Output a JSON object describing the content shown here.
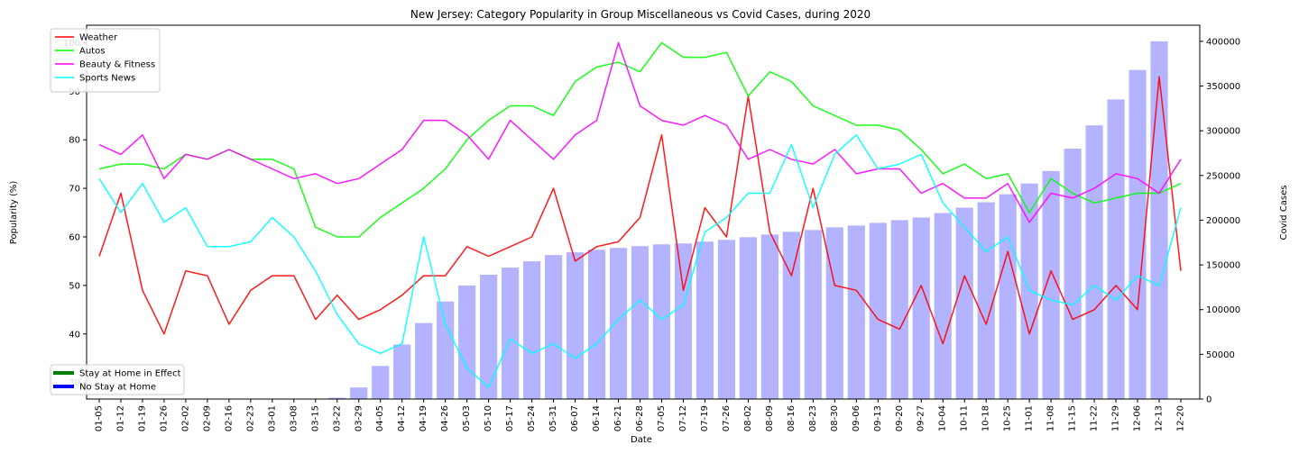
{
  "chart_data": {
    "type": "bar+line",
    "title": "New Jersey: Category Popularity in Group Miscellaneous vs Covid Cases, during 2020",
    "xlabel": "Date",
    "ylabel": "Popularity (%)",
    "y2label": "Covid Cases",
    "ylim": [
      26.6,
      103.6
    ],
    "y2lim": [
      0,
      418000
    ],
    "yticks": [
      30,
      40,
      50,
      60,
      70,
      80,
      90,
      100
    ],
    "y2ticks": [
      0,
      50000,
      100000,
      150000,
      200000,
      250000,
      300000,
      350000,
      400000
    ],
    "categories": [
      "01-05",
      "01-12",
      "01-19",
      "01-26",
      "02-02",
      "02-09",
      "02-16",
      "02-23",
      "03-01",
      "03-08",
      "03-15",
      "03-22",
      "03-29",
      "04-05",
      "04-12",
      "04-19",
      "04-26",
      "05-03",
      "05-10",
      "05-17",
      "05-24",
      "05-31",
      "06-07",
      "06-14",
      "06-21",
      "06-28",
      "07-05",
      "07-12",
      "07-19",
      "07-26",
      "08-02",
      "08-09",
      "08-16",
      "08-23",
      "08-30",
      "09-06",
      "09-13",
      "09-20",
      "09-27",
      "10-04",
      "10-11",
      "10-18",
      "10-25",
      "11-01",
      "11-08",
      "11-15",
      "11-22",
      "11-29",
      "12-06",
      "12-13",
      "12-20"
    ],
    "bars": {
      "name": "Covid Cases",
      "color": "#b3b3ff",
      "values": [
        0,
        0,
        0,
        0,
        0,
        0,
        0,
        0,
        0,
        0,
        0,
        1500,
        13000,
        37000,
        61000,
        85000,
        109000,
        127000,
        139000,
        147000,
        154000,
        161000,
        164000,
        167000,
        169000,
        171000,
        173000,
        174000,
        176000,
        178000,
        181000,
        184000,
        187000,
        189000,
        192000,
        194000,
        197000,
        200000,
        203000,
        208000,
        214000,
        220000,
        229000,
        241000,
        255000,
        280000,
        306000,
        335000,
        368000,
        400000,
        null
      ]
    },
    "series": [
      {
        "name": "Weather",
        "color": "#ff0000",
        "values": [
          56,
          69,
          49,
          40,
          53,
          52,
          42,
          49,
          52,
          52,
          43,
          48,
          43,
          45,
          48,
          52,
          52,
          58,
          56,
          58,
          60,
          70,
          55,
          58,
          59,
          64,
          81,
          49,
          66,
          60,
          89,
          61,
          52,
          70,
          50,
          49,
          43,
          41,
          50,
          38,
          52,
          42,
          57,
          40,
          53,
          43,
          45,
          50,
          45,
          93,
          53
        ]
      },
      {
        "name": "Autos",
        "color": "#00ff00",
        "values": [
          74,
          75,
          75,
          74,
          77,
          76,
          78,
          76,
          76,
          74,
          62,
          60,
          60,
          64,
          67,
          70,
          74,
          80,
          84,
          87,
          87,
          85,
          92,
          95,
          96,
          94,
          100,
          97,
          97,
          98,
          89,
          94,
          92,
          87,
          85,
          83,
          83,
          82,
          78,
          73,
          75,
          72,
          73,
          65,
          72,
          69,
          67,
          68,
          69,
          69,
          71
        ]
      },
      {
        "name": "Beauty & Fitness",
        "color": "#ff00ff",
        "values": [
          79,
          77,
          81,
          72,
          77,
          76,
          78,
          76,
          74,
          72,
          73,
          71,
          72,
          75,
          78,
          84,
          84,
          81,
          76,
          84,
          80,
          76,
          81,
          84,
          100,
          87,
          84,
          83,
          85,
          83,
          76,
          78,
          76,
          75,
          78,
          73,
          74,
          74,
          69,
          71,
          68,
          68,
          71,
          63,
          69,
          68,
          70,
          73,
          72,
          69,
          76
        ]
      },
      {
        "name": "Sports News",
        "color": "#00ffff",
        "values": [
          72,
          65,
          71,
          63,
          66,
          58,
          58,
          59,
          64,
          60,
          53,
          44,
          38,
          36,
          38,
          60,
          42,
          33,
          29,
          39,
          36,
          38,
          35,
          38,
          43,
          47,
          43,
          46,
          61,
          64,
          69,
          69,
          79,
          66,
          77,
          81,
          74,
          75,
          77,
          67,
          62,
          57,
          60,
          49,
          47,
          46,
          50,
          47,
          52,
          50,
          66
        ]
      }
    ],
    "legend_lines": {
      "location": "upper left",
      "entries": [
        "Weather",
        "Autos",
        "Beauty & Fitness",
        "Sports News"
      ]
    },
    "legend_patches": {
      "location": "lower left",
      "entries": [
        {
          "label": "Stay at Home in Effect",
          "color": "#008000"
        },
        {
          "label": "No Stay at Home",
          "color": "#0000ff"
        }
      ]
    }
  }
}
